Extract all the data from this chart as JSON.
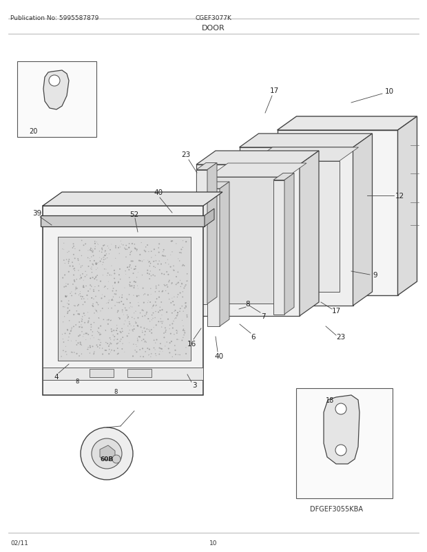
{
  "title": "DOOR",
  "pub_no": "Publication No: 5995587879",
  "model": "CGEF3077K",
  "footer_left": "02/11",
  "footer_center": "10",
  "bg_color": "#ffffff",
  "fig_width": 6.2,
  "fig_height": 8.03
}
